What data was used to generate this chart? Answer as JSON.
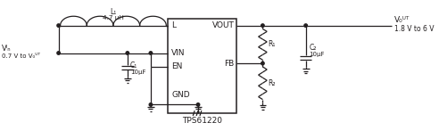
{
  "bg_color": "#ffffff",
  "line_color": "#231f20",
  "text_color": "#231f20",
  "fig_width": 4.92,
  "fig_height": 1.47,
  "dpi": 100,
  "labels": {
    "L_pin": "L",
    "VIN_pin": "VIN",
    "EN_pin": "EN",
    "GND_pin": "GND",
    "VOUT_pin": "VOUT",
    "FB_pin": "FB",
    "chip_name": "TPS61220",
    "L1_label": "L₁",
    "L1_value": "4.7 μH",
    "C1_label": "C₁",
    "C1_value": "10μF",
    "R1_label": "R₁",
    "R2_label": "R₂",
    "C2_label": "C₂",
    "C2_value": "10μF",
    "VIN_label": "Vᴵₙ",
    "VIN_range": "0.7 V to V₀ᵁᵀ",
    "VOUT_label": "V₀ᵁᵀ",
    "VOUT_range": "1.8 V to 6 V"
  }
}
